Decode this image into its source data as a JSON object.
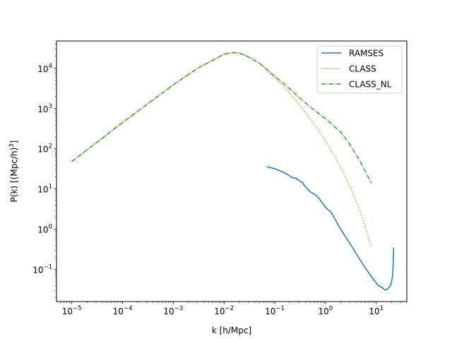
{
  "chart_data": {
    "type": "line",
    "xlabel": "k [h/Mpc]",
    "ylabel": "P(k) [(Mpc/h)^3]",
    "xscale": "log",
    "yscale": "log",
    "xlim": [
      5e-06,
      40
    ],
    "ylim": [
      0.016,
      48000
    ],
    "grid": false,
    "legend_placement": "top-right",
    "xticks": [
      {
        "value": 1e-05,
        "label": "10^-5"
      },
      {
        "value": 0.0001,
        "label": "10^-4"
      },
      {
        "value": 0.001,
        "label": "10^-3"
      },
      {
        "value": 0.01,
        "label": "10^-2"
      },
      {
        "value": 0.1,
        "label": "10^-1"
      },
      {
        "value": 1,
        "label": "10^0"
      },
      {
        "value": 10,
        "label": "10^1"
      }
    ],
    "yticks": [
      {
        "value": 0.1,
        "label": "10^-1"
      },
      {
        "value": 1,
        "label": "10^0"
      },
      {
        "value": 10,
        "label": "10^1"
      },
      {
        "value": 100,
        "label": "10^2"
      },
      {
        "value": 1000,
        "label": "10^3"
      },
      {
        "value": 10000,
        "label": "10^4"
      }
    ],
    "series": [
      {
        "name": "RAMSES",
        "color": "#1f77b4",
        "style": "solid",
        "x": [
          0.07,
          0.1,
          0.13,
          0.17,
          0.22,
          0.26,
          0.3,
          0.35,
          0.4,
          0.5,
          0.6,
          0.7,
          0.8,
          1.0,
          1.3,
          2,
          3,
          5,
          7,
          9,
          11,
          13,
          14,
          15,
          17,
          19,
          20,
          21,
          21.5,
          22
        ],
        "y": [
          36,
          32,
          28,
          24,
          19.5,
          18.5,
          16.5,
          14.5,
          11.5,
          8.5,
          7.5,
          6.5,
          5.2,
          3.5,
          2.6,
          1.0,
          0.45,
          0.16,
          0.085,
          0.055,
          0.04,
          0.036,
          0.033,
          0.031,
          0.033,
          0.04,
          0.05,
          0.07,
          0.12,
          0.35
        ]
      },
      {
        "name": "CLASS",
        "color": "#ff7f0e",
        "style": "dotted",
        "x": [
          1e-05,
          0.0001,
          0.001,
          0.003,
          0.01,
          0.015,
          0.02,
          0.03,
          0.05,
          0.07,
          0.1,
          0.15,
          0.2,
          0.3,
          0.5,
          1,
          2,
          3,
          5,
          8
        ],
        "y": [
          48,
          450,
          3900,
          10000,
          22500,
          24500,
          24000,
          19500,
          13500,
          9200,
          5800,
          3500,
          2400,
          1300,
          560,
          160,
          35,
          12,
          2.5,
          0.37
        ]
      },
      {
        "name": "CLASS_NL",
        "color": "#2ca02c",
        "style": "dashdot",
        "x": [
          1e-05,
          0.0001,
          0.001,
          0.003,
          0.01,
          0.015,
          0.02,
          0.03,
          0.05,
          0.07,
          0.1,
          0.15,
          0.2,
          0.3,
          0.5,
          1,
          2,
          3,
          5,
          8
        ],
        "y": [
          48,
          450,
          3900,
          10000,
          22500,
          24500,
          24000,
          19500,
          13500,
          9400,
          6300,
          4200,
          3100,
          1900,
          1100,
          560,
          260,
          130,
          45,
          14
        ]
      }
    ]
  }
}
